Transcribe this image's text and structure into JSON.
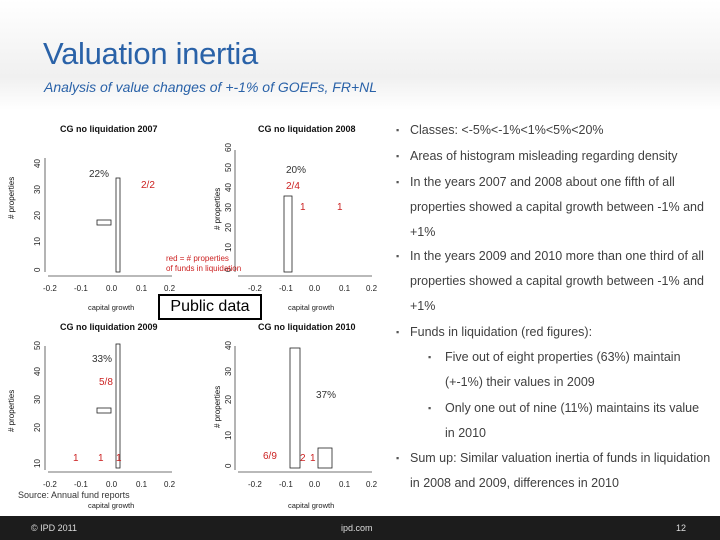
{
  "slide": {
    "title": "Valuation inertia",
    "subtitle": "Analysis of value changes of +-1% of GOEFs, FR+NL",
    "source": "Source: Annual fund reports"
  },
  "bullets": [
    {
      "level": 1,
      "text": "Classes: <-5%<-1%<1%<5%<20%"
    },
    {
      "level": 1,
      "text": "Areas of histogram misleading regarding density"
    },
    {
      "level": 1,
      "text": "In the years 2007 and 2008 about one fifth of all properties showed a capital growth between -1% and +1%"
    },
    {
      "level": 1,
      "text": "In the years 2009 and 2010 more than one third of all properties showed a capital growth between -1% and +1%"
    },
    {
      "level": 1,
      "text": "Funds in liquidation (red figures):"
    },
    {
      "level": 2,
      "text": "Five out of eight properties (63%) maintain (+-1%) their values in 2009"
    },
    {
      "level": 2,
      "text": "Only one out of nine (11%) maintains its value in 2010"
    },
    {
      "level": 1,
      "text": "Sum up: Similar valuation inertia of funds in liquidation in 2008 and 2009, differences in 2010"
    }
  ],
  "figure": {
    "public_box": "Public data",
    "note_line1": "red = # properties",
    "note_line2": "of funds in liquidation",
    "panels": [
      {
        "title": "CG no liquidation 2007",
        "xlabel": "capital growth",
        "ylabel": "# properties",
        "pct": "22%",
        "red": [
          "2/2"
        ]
      },
      {
        "title": "CG no liquidation 2008",
        "xlabel": "capital growth",
        "ylabel": "# properties",
        "pct": "20%",
        "red": [
          "2/4",
          "1",
          "1"
        ]
      },
      {
        "title": "CG no liquidation 2009",
        "xlabel": "capital growth",
        "ylabel": "# properties",
        "pct": "33%",
        "red": [
          "5/8",
          "1",
          "1",
          "1"
        ]
      },
      {
        "title": "CG no liquidation 2010",
        "xlabel": "capital growth",
        "ylabel": "# properties",
        "pct": "37%",
        "red": [
          "6/9",
          "2",
          "1"
        ]
      }
    ],
    "xticks": [
      "-0.2",
      "-0.1",
      "0.0",
      "0.1",
      "0.2"
    ],
    "yticks_a": [
      "0",
      "10",
      "20",
      "30",
      "40",
      "50"
    ],
    "yticks_b": [
      "0",
      "10",
      "20",
      "30",
      "40",
      "50",
      "60"
    ]
  },
  "footer": {
    "copyright": "© IPD 2011",
    "site": "ipd.com",
    "page": "12"
  },
  "colors": {
    "title": "#2a62a8",
    "red_note": "#cc2222",
    "footer_bg": "#1c1c1c"
  }
}
